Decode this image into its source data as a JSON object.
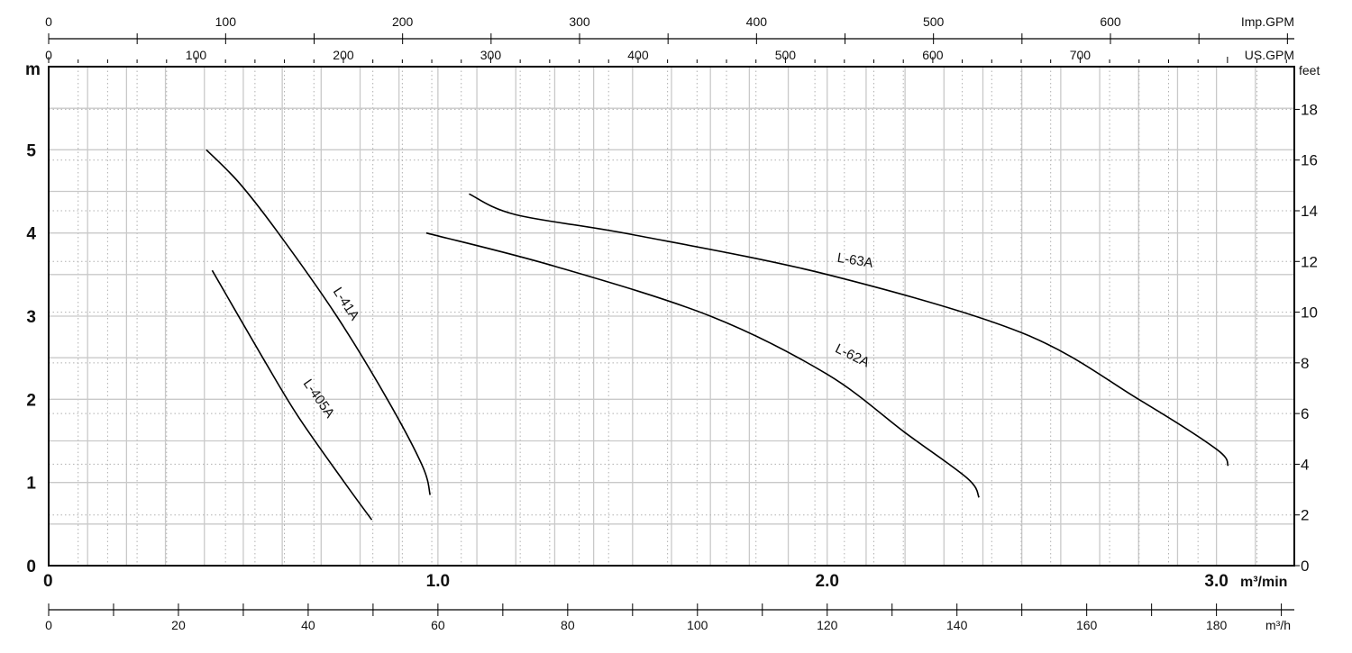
{
  "chart_data": {
    "type": "line",
    "grid": true,
    "x_axis": {
      "primary_unit_label": "m³/min",
      "range": [
        0,
        3.2
      ],
      "ticks": [
        {
          "value": 0,
          "label": "0"
        },
        {
          "value": 1.0,
          "label": "1.0"
        },
        {
          "value": 2.0,
          "label": "2.0"
        },
        {
          "value": 3.0,
          "label": "3.0"
        }
      ],
      "secondary_top_1": {
        "unit_label": "Imp.GPM",
        "ticks": [
          "0",
          "100",
          "200",
          "300",
          "400",
          "500",
          "600"
        ]
      },
      "secondary_top_2": {
        "unit_label": "US.GPM",
        "ticks": [
          "0",
          "100",
          "200",
          "300",
          "400",
          "500",
          "600",
          "700"
        ]
      },
      "secondary_bottom": {
        "unit_label": "m³/h",
        "ticks": [
          "0",
          "20",
          "40",
          "60",
          "80",
          "100",
          "120",
          "140",
          "160",
          "180"
        ]
      }
    },
    "y_axis": {
      "left_unit_label": "m",
      "range": [
        0,
        6
      ],
      "left_ticks": [
        "0",
        "1",
        "2",
        "3",
        "4",
        "5"
      ],
      "right_unit_label": "feet",
      "right_ticks": [
        "0",
        "2",
        "4",
        "6",
        "8",
        "10",
        "12",
        "14",
        "16",
        "18"
      ]
    },
    "series": [
      {
        "name": "L-41A",
        "points": [
          [
            0.405,
            5.0
          ],
          [
            0.49,
            4.6
          ],
          [
            0.59,
            4.0
          ],
          [
            0.74,
            3.0
          ],
          [
            0.87,
            2.0
          ],
          [
            0.96,
            1.2
          ],
          [
            0.98,
            0.85
          ]
        ]
      },
      {
        "name": "L-405A",
        "points": [
          [
            0.42,
            3.55
          ],
          [
            0.55,
            2.5
          ],
          [
            0.64,
            1.8
          ],
          [
            0.76,
            1.0
          ],
          [
            0.83,
            0.55
          ]
        ]
      },
      {
        "name": "L-62A",
        "points": [
          [
            0.97,
            4.0
          ],
          [
            1.3,
            3.6
          ],
          [
            1.7,
            3.0
          ],
          [
            2.0,
            2.3
          ],
          [
            2.2,
            1.6
          ],
          [
            2.36,
            1.05
          ],
          [
            2.39,
            0.82
          ]
        ]
      },
      {
        "name": "L-63A",
        "points": [
          [
            1.08,
            4.47
          ],
          [
            1.2,
            4.22
          ],
          [
            1.5,
            3.98
          ],
          [
            2.0,
            3.5
          ],
          [
            2.5,
            2.8
          ],
          [
            2.8,
            2.0
          ],
          [
            3.0,
            1.4
          ],
          [
            3.03,
            1.2
          ]
        ]
      }
    ]
  }
}
